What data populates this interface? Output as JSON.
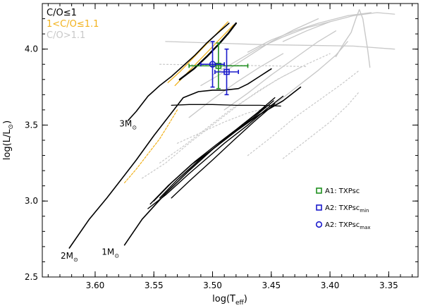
{
  "chart_data": {
    "type": "line",
    "title": "",
    "xlabel": "log(T",
    "xlabel_sub": "eff",
    "xlabel_close": ")",
    "ylabel": "log(L/L",
    "ylabel_sub": "⊙",
    "ylabel_close": ")",
    "xlim": [
      3.645,
      3.325
    ],
    "ylim": [
      2.5,
      4.3
    ],
    "x_ticks": [
      3.6,
      3.55,
      3.5,
      3.45,
      3.4,
      3.35
    ],
    "x_tick_labels": [
      "3.60",
      "3.55",
      "3.50",
      "3.45",
      "3.40",
      "3.35"
    ],
    "y_ticks": [
      2.5,
      3.0,
      3.5,
      4.0
    ],
    "y_tick_labels": [
      "2.5",
      "3.0",
      "3.5",
      "4.0"
    ],
    "colors": {
      "co_le_1": "#000000",
      "co_mid": "#f2b21c",
      "co_gt_1_1": "#c8c8c8",
      "a1": "#1e8f1e",
      "a2": "#1a1acc",
      "axis": "#000000"
    },
    "legend_top": [
      {
        "label": "C/O≤1",
        "color_key": "co_le_1"
      },
      {
        "label": "1<C/O≤1.1",
        "color_key": "co_mid"
      },
      {
        "label": "C/O>1.1",
        "color_key": "co_gt_1_1"
      }
    ],
    "legend_bottom": [
      {
        "marker": "square",
        "color_key": "a1",
        "label": "A1: TXPsc",
        "sub": ""
      },
      {
        "marker": "square",
        "color_key": "a2",
        "label": "A2: TXPsc",
        "sub": "min"
      },
      {
        "marker": "circle",
        "color_key": "a2",
        "label": "A2: TXPsc",
        "sub": "max"
      }
    ],
    "mass_labels": [
      {
        "text": "3M",
        "sub": "⊙",
        "x": 3.572,
        "y": 3.49
      },
      {
        "text": "2M",
        "sub": "⊙",
        "x": 3.622,
        "y": 2.62
      },
      {
        "text": "1M",
        "sub": "⊙",
        "x": 3.587,
        "y": 2.645
      }
    ],
    "series": [
      {
        "name": "1 Msun RGB",
        "color_key": "co_le_1",
        "width": 1.6,
        "dash": "",
        "points": [
          [
            3.575,
            2.71
          ],
          [
            3.56,
            2.88
          ],
          [
            3.54,
            3.05
          ],
          [
            3.52,
            3.2
          ],
          [
            3.5,
            3.34
          ],
          [
            3.48,
            3.46
          ],
          [
            3.46,
            3.57
          ],
          [
            3.44,
            3.66
          ],
          [
            3.425,
            3.75
          ]
        ]
      },
      {
        "name": "1 Msun band A",
        "color_key": "co_le_1",
        "width": 1.4,
        "dash": "",
        "points": [
          [
            3.555,
            2.95
          ],
          [
            3.54,
            3.04
          ],
          [
            3.52,
            3.18
          ],
          [
            3.505,
            3.28
          ],
          [
            3.49,
            3.38
          ],
          [
            3.47,
            3.5
          ],
          [
            3.455,
            3.6
          ],
          [
            3.44,
            3.69
          ]
        ]
      },
      {
        "name": "1 Msun band B",
        "color_key": "co_le_1",
        "width": 1.4,
        "dash": "",
        "points": [
          [
            3.553,
            2.98
          ],
          [
            3.538,
            3.1
          ],
          [
            3.518,
            3.24
          ],
          [
            3.5,
            3.34
          ],
          [
            3.483,
            3.45
          ],
          [
            3.465,
            3.55
          ],
          [
            3.448,
            3.66
          ]
        ]
      },
      {
        "name": "1 Msun band C",
        "color_key": "co_le_1",
        "width": 1.4,
        "dash": "",
        "points": [
          [
            3.55,
            3.0
          ],
          [
            3.535,
            3.12
          ],
          [
            3.515,
            3.26
          ],
          [
            3.497,
            3.37
          ],
          [
            3.48,
            3.47
          ],
          [
            3.462,
            3.58
          ],
          [
            3.447,
            3.68
          ]
        ]
      },
      {
        "name": "1 Msun band D",
        "color_key": "co_le_1",
        "width": 1.4,
        "dash": "",
        "points": [
          [
            3.545,
            3.02
          ],
          [
            3.53,
            3.14
          ],
          [
            3.51,
            3.28
          ],
          [
            3.492,
            3.39
          ],
          [
            3.475,
            3.5
          ],
          [
            3.455,
            3.62
          ]
        ]
      },
      {
        "name": "1 Msun band E",
        "color_key": "co_le_1",
        "width": 1.4,
        "dash": "",
        "points": [
          [
            3.535,
            3.02
          ],
          [
            3.52,
            3.13
          ],
          [
            3.5,
            3.27
          ],
          [
            3.482,
            3.4
          ],
          [
            3.465,
            3.52
          ],
          [
            3.447,
            3.64
          ]
        ]
      },
      {
        "name": "2 Msun track",
        "color_key": "co_le_1",
        "width": 1.6,
        "dash": "",
        "points": [
          [
            3.622,
            2.69
          ],
          [
            3.605,
            2.88
          ],
          [
            3.59,
            3.02
          ],
          [
            3.58,
            3.12
          ],
          [
            3.565,
            3.27
          ],
          [
            3.55,
            3.43
          ],
          [
            3.535,
            3.58
          ],
          [
            3.525,
            3.68
          ],
          [
            3.512,
            3.72
          ],
          [
            3.5,
            3.73
          ],
          [
            3.49,
            3.73
          ],
          [
            3.478,
            3.74
          ],
          [
            3.47,
            3.77
          ],
          [
            3.46,
            3.82
          ],
          [
            3.45,
            3.87
          ]
        ]
      },
      {
        "name": "2 Msun loop",
        "color_key": "co_le_1",
        "width": 1.3,
        "dash": "",
        "points": [
          [
            3.535,
            3.63
          ],
          [
            3.52,
            3.635
          ],
          [
            3.5,
            3.635
          ],
          [
            3.48,
            3.63
          ],
          [
            3.46,
            3.63
          ],
          [
            3.442,
            3.625
          ]
        ]
      },
      {
        "name": "3 Msun track",
        "color_key": "co_le_1",
        "width": 1.6,
        "dash": "",
        "points": [
          [
            3.572,
            3.53
          ],
          [
            3.565,
            3.59
          ],
          [
            3.555,
            3.69
          ],
          [
            3.545,
            3.76
          ],
          [
            3.535,
            3.82
          ],
          [
            3.525,
            3.89
          ],
          [
            3.515,
            3.96
          ],
          [
            3.505,
            4.04
          ],
          [
            3.495,
            4.11
          ],
          [
            3.486,
            4.17
          ]
        ]
      },
      {
        "name": "3 Msun TP-AGB",
        "color_key": "co_le_1",
        "width": 2.4,
        "dash": "",
        "points": [
          [
            3.528,
            3.8
          ],
          [
            3.516,
            3.87
          ],
          [
            3.505,
            3.95
          ],
          [
            3.495,
            4.03
          ],
          [
            3.487,
            4.1
          ],
          [
            3.48,
            4.17
          ]
        ]
      },
      {
        "name": "2 Msun TP-AGB yellow",
        "color_key": "co_mid",
        "width": 1.2,
        "dash": "3,2",
        "points": [
          [
            3.575,
            3.12
          ],
          [
            3.565,
            3.21
          ],
          [
            3.555,
            3.31
          ],
          [
            3.545,
            3.41
          ],
          [
            3.537,
            3.51
          ],
          [
            3.53,
            3.6
          ]
        ]
      },
      {
        "name": "3 Msun TP-AGB yellow A",
        "color_key": "co_mid",
        "width": 1.3,
        "dash": "",
        "points": [
          [
            3.538,
            3.78
          ],
          [
            3.528,
            3.85
          ],
          [
            3.518,
            3.93
          ],
          [
            3.508,
            4.01
          ],
          [
            3.498,
            4.09
          ],
          [
            3.487,
            4.18
          ]
        ]
      },
      {
        "name": "3 Msun TP-AGB yellow B",
        "color_key": "co_mid",
        "width": 1.3,
        "dash": "",
        "points": [
          [
            3.532,
            3.76
          ],
          [
            3.522,
            3.84
          ],
          [
            3.512,
            3.92
          ],
          [
            3.502,
            4.0
          ],
          [
            3.492,
            4.08
          ],
          [
            3.482,
            4.16
          ]
        ]
      },
      {
        "name": "gray track 1",
        "color_key": "co_gt_1_1",
        "width": 1.3,
        "dash": "",
        "points": [
          [
            3.5,
            3.83
          ],
          [
            3.48,
            3.92
          ],
          [
            3.46,
            4.01
          ],
          [
            3.44,
            4.08
          ],
          [
            3.42,
            4.14
          ],
          [
            3.4,
            4.18
          ]
        ]
      },
      {
        "name": "gray track 2",
        "color_key": "co_gt_1_1",
        "width": 1.3,
        "dash": "",
        "points": [
          [
            3.51,
            3.76
          ],
          [
            3.49,
            3.85
          ],
          [
            3.47,
            3.95
          ],
          [
            3.45,
            4.05
          ],
          [
            3.43,
            4.13
          ],
          [
            3.41,
            4.2
          ]
        ]
      },
      {
        "name": "gray track 3",
        "color_key": "co_gt_1_1",
        "width": 1.3,
        "dash": "",
        "points": [
          [
            3.49,
            3.6
          ],
          [
            3.47,
            3.71
          ],
          [
            3.45,
            3.83
          ],
          [
            3.43,
            3.94
          ],
          [
            3.41,
            4.05
          ],
          [
            3.395,
            4.12
          ]
        ]
      },
      {
        "name": "gray track 4",
        "color_key": "co_gt_1_1",
        "width": 1.3,
        "dash": "",
        "points": [
          [
            3.47,
            3.5
          ],
          [
            3.45,
            3.62
          ],
          [
            3.43,
            3.74
          ],
          [
            3.41,
            3.86
          ],
          [
            3.395,
            3.96
          ],
          [
            3.385,
            4.05
          ]
        ]
      },
      {
        "name": "gray track 5",
        "color_key": "co_gt_1_1",
        "width": 1.3,
        "dash": "",
        "points": [
          [
            3.52,
            3.55
          ],
          [
            3.5,
            3.67
          ],
          [
            3.48,
            3.78
          ],
          [
            3.46,
            3.88
          ],
          [
            3.44,
            3.97
          ]
        ]
      },
      {
        "name": "gray peak track",
        "color_key": "co_gt_1_1",
        "width": 1.4,
        "dash": "",
        "points": [
          [
            3.395,
            3.95
          ],
          [
            3.388,
            4.04
          ],
          [
            3.382,
            4.11
          ],
          [
            3.378,
            4.2
          ],
          [
            3.375,
            4.26
          ],
          [
            3.372,
            4.2
          ],
          [
            3.37,
            4.1
          ],
          [
            3.368,
            4.0
          ],
          [
            3.366,
            3.88
          ]
        ]
      },
      {
        "name": "gray long upper",
        "color_key": "co_gt_1_1",
        "width": 1.3,
        "dash": "",
        "points": [
          [
            3.54,
            4.05
          ],
          [
            3.5,
            4.04
          ],
          [
            3.46,
            4.03
          ],
          [
            3.42,
            4.025
          ],
          [
            3.38,
            4.02
          ],
          [
            3.345,
            4.0
          ]
        ]
      },
      {
        "name": "gray top branch",
        "color_key": "co_gt_1_1",
        "width": 1.3,
        "dash": "",
        "points": [
          [
            3.44,
            4.05
          ],
          [
            3.42,
            4.12
          ],
          [
            3.4,
            4.18
          ],
          [
            3.38,
            4.22
          ],
          [
            3.36,
            4.24
          ],
          [
            3.345,
            4.23
          ]
        ]
      },
      {
        "name": "gray upper arc",
        "color_key": "co_gt_1_1",
        "width": 1.3,
        "dash": "",
        "points": [
          [
            3.47,
            3.98
          ],
          [
            3.45,
            4.06
          ],
          [
            3.43,
            4.12
          ],
          [
            3.41,
            4.17
          ],
          [
            3.385,
            4.22
          ],
          [
            3.365,
            4.24
          ]
        ]
      },
      {
        "name": "gray dotted A",
        "color_key": "co_gt_1_1",
        "width": 1.2,
        "dash": "2,3",
        "points": [
          [
            3.56,
            3.15
          ],
          [
            3.54,
            3.25
          ],
          [
            3.52,
            3.38
          ],
          [
            3.5,
            3.5
          ],
          [
            3.48,
            3.62
          ],
          [
            3.46,
            3.73
          ],
          [
            3.44,
            3.82
          ],
          [
            3.42,
            3.9
          ],
          [
            3.4,
            3.97
          ]
        ]
      },
      {
        "name": "gray dotted B",
        "color_key": "co_gt_1_1",
        "width": 1.2,
        "dash": "2,3",
        "points": [
          [
            3.545,
            3.25
          ],
          [
            3.525,
            3.36
          ],
          [
            3.505,
            3.48
          ],
          [
            3.485,
            3.6
          ],
          [
            3.465,
            3.7
          ],
          [
            3.445,
            3.8
          ],
          [
            3.425,
            3.88
          ]
        ]
      },
      {
        "name": "gray dotted C",
        "color_key": "co_gt_1_1",
        "width": 1.2,
        "dash": "2,3",
        "points": [
          [
            3.47,
            3.3
          ],
          [
            3.45,
            3.42
          ],
          [
            3.43,
            3.55
          ],
          [
            3.41,
            3.66
          ],
          [
            3.39,
            3.77
          ],
          [
            3.375,
            3.86
          ]
        ]
      },
      {
        "name": "gray dotted D",
        "color_key": "co_gt_1_1",
        "width": 1.2,
        "dash": "2,3",
        "points": [
          [
            3.44,
            3.28
          ],
          [
            3.42,
            3.4
          ],
          [
            3.4,
            3.52
          ],
          [
            3.385,
            3.63
          ],
          [
            3.375,
            3.72
          ]
        ]
      },
      {
        "name": "gray dotted horizontal",
        "color_key": "co_gt_1_1",
        "width": 1.2,
        "dash": "2,3",
        "points": [
          [
            3.545,
            3.9
          ],
          [
            3.5,
            3.895
          ],
          [
            3.45,
            3.89
          ],
          [
            3.42,
            3.885
          ]
        ]
      },
      {
        "name": "gray dotted lower",
        "color_key": "co_gt_1_1",
        "width": 1.2,
        "dash": "2,3",
        "points": [
          [
            3.53,
            3.38
          ],
          [
            3.51,
            3.45
          ],
          [
            3.49,
            3.52
          ],
          [
            3.47,
            3.58
          ],
          [
            3.45,
            3.62
          ]
        ]
      }
    ],
    "error_points": [
      {
        "name": "A1: TXPsc",
        "marker": "square",
        "color_key": "a1",
        "x": 3.495,
        "y": 3.89,
        "xerr": 0.025,
        "yerr": 0.15
      },
      {
        "name": "A2: TXPsc min",
        "marker": "square",
        "color_key": "a2",
        "x": 3.488,
        "y": 3.85,
        "xerr": 0.01,
        "yerr": 0.15
      },
      {
        "name": "A2: TXPsc max",
        "marker": "circle",
        "color_key": "a2",
        "x": 3.5,
        "y": 3.9,
        "xerr": 0.01,
        "yerr": 0.15
      }
    ]
  }
}
